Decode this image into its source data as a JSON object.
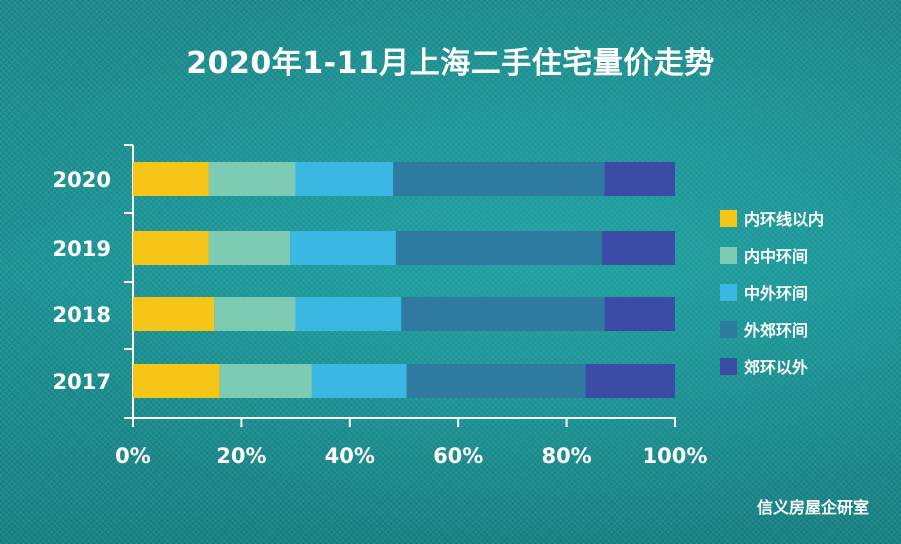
{
  "title": "2020年1-11月上海二手住宅量价走势",
  "source": "信义房屋企研室",
  "chart_data": {
    "type": "bar",
    "orientation": "horizontal",
    "stacked": true,
    "title": "2020年1-11月上海二手住宅量价走势",
    "categories": [
      "2020",
      "2019",
      "2018",
      "2017"
    ],
    "x_ticks": [
      "0%",
      "20%",
      "40%",
      "60%",
      "80%",
      "100%"
    ],
    "xlim": [
      0,
      100
    ],
    "legend_position": "right",
    "series": [
      {
        "name": "内环线以内",
        "color": "#f5c518",
        "values": [
          14,
          14,
          15,
          16
        ]
      },
      {
        "name": "内中环间",
        "color": "#7ecbb3",
        "values": [
          16,
          15,
          15,
          17
        ]
      },
      {
        "name": "中外环间",
        "color": "#3ab7e2",
        "values": [
          18,
          19.5,
          19.5,
          17.5
        ]
      },
      {
        "name": "外郊环间",
        "color": "#2e7aa0",
        "values": [
          39,
          38,
          37.5,
          33
        ]
      },
      {
        "name": "郊环以外",
        "color": "#3c4ca6",
        "values": [
          13,
          13.5,
          13,
          16.5
        ]
      }
    ]
  }
}
